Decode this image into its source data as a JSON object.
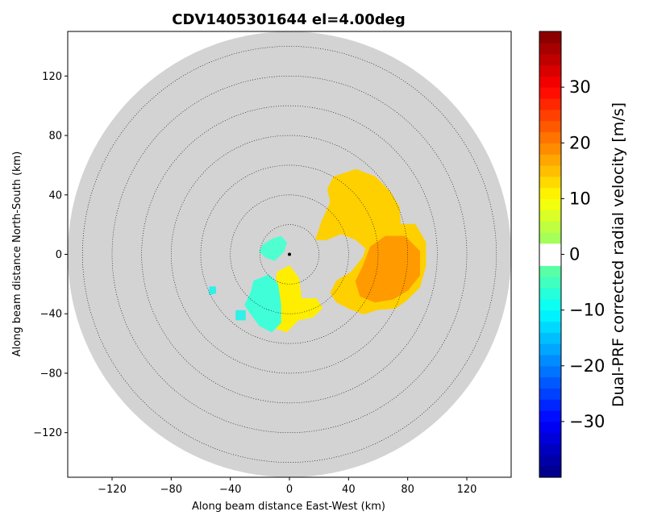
{
  "chart_data": {
    "type": "ppi_radar",
    "title": "CDV1405301644 el=4.00deg",
    "xlabel": "Along beam distance East-West (km)",
    "ylabel": "Along beam distance North-South (km)",
    "xlim": [
      -150,
      150
    ],
    "ylim": [
      -150,
      150
    ],
    "x_ticks": [
      -120,
      -80,
      -40,
      0,
      40,
      80,
      120
    ],
    "y_ticks": [
      -120,
      -80,
      -40,
      0,
      40,
      80,
      120
    ],
    "x_tick_labels": [
      "−120",
      "−80",
      "−40",
      "0",
      "40",
      "80",
      "120"
    ],
    "y_tick_labels": [
      "−120",
      "−80",
      "−40",
      "0",
      "40",
      "80",
      "120"
    ],
    "range_rings_km": [
      20,
      40,
      60,
      80,
      100,
      120,
      140
    ],
    "max_range_km": 150,
    "radar_center": [
      0,
      0
    ],
    "background_color": "#d3d3d3",
    "colorbar": {
      "label": "Dual-PRF corrected radial velocity [m/s]",
      "vmin": -40,
      "vmax": 40,
      "ticks": [
        30,
        20,
        10,
        0,
        -10,
        -20,
        -30
      ],
      "tick_labels": [
        "30",
        "20",
        "10",
        "0",
        "−10",
        "−20",
        "−30"
      ],
      "colormap": "jet_with_white_center",
      "levels": 40
    },
    "echo_regions": [
      {
        "name": "eastern-cell",
        "approx_velocity_ms": 12,
        "color": "#ffd000",
        "outline_km": [
          [
            18,
            10
          ],
          [
            22,
            22
          ],
          [
            28,
            35
          ],
          [
            26,
            44
          ],
          [
            30,
            52
          ],
          [
            45,
            57
          ],
          [
            58,
            52
          ],
          [
            68,
            42
          ],
          [
            74,
            32
          ],
          [
            75,
            20
          ],
          [
            85,
            20
          ],
          [
            92,
            8
          ],
          [
            92,
            -8
          ],
          [
            88,
            -22
          ],
          [
            80,
            -30
          ],
          [
            72,
            -36
          ],
          [
            60,
            -37
          ],
          [
            50,
            -40
          ],
          [
            40,
            -36
          ],
          [
            32,
            -32
          ],
          [
            28,
            -26
          ],
          [
            32,
            -18
          ],
          [
            42,
            -12
          ],
          [
            50,
            -2
          ],
          [
            52,
            4
          ],
          [
            45,
            10
          ],
          [
            35,
            14
          ],
          [
            25,
            10
          ]
        ]
      },
      {
        "name": "eastern-core",
        "approx_velocity_ms": 17,
        "color": "#ff9a00",
        "outline_km": [
          [
            55,
            5
          ],
          [
            65,
            12
          ],
          [
            78,
            12
          ],
          [
            88,
            2
          ],
          [
            88,
            -14
          ],
          [
            80,
            -24
          ],
          [
            70,
            -30
          ],
          [
            58,
            -32
          ],
          [
            48,
            -28
          ],
          [
            45,
            -18
          ],
          [
            50,
            -8
          ]
        ]
      },
      {
        "name": "southern-cell",
        "approx_velocity_ms": 6,
        "color": "#ffee00",
        "outline_km": [
          [
            -8,
            -12
          ],
          [
            0,
            -8
          ],
          [
            6,
            -16
          ],
          [
            8,
            -30
          ],
          [
            18,
            -30
          ],
          [
            22,
            -36
          ],
          [
            16,
            -42
          ],
          [
            6,
            -44
          ],
          [
            -2,
            -52
          ],
          [
            -8,
            -50
          ],
          [
            -12,
            -42
          ],
          [
            -10,
            -28
          ]
        ]
      },
      {
        "name": "southwest-cell",
        "approx_velocity_ms": -8,
        "color": "#40ffd8",
        "outline_km": [
          [
            -24,
            -18
          ],
          [
            -14,
            -14
          ],
          [
            -8,
            -20
          ],
          [
            -6,
            -34
          ],
          [
            -6,
            -46
          ],
          [
            -12,
            -52
          ],
          [
            -20,
            -48
          ],
          [
            -26,
            -40
          ],
          [
            -30,
            -34
          ],
          [
            -26,
            -26
          ]
        ]
      },
      {
        "name": "near-radar-echo",
        "approx_velocity_ms": -5,
        "color": "#50ffd0",
        "outline_km": [
          [
            -18,
            6
          ],
          [
            -12,
            10
          ],
          [
            -6,
            12
          ],
          [
            -2,
            8
          ],
          [
            -4,
            2
          ],
          [
            -10,
            -4
          ],
          [
            -16,
            -2
          ],
          [
            -20,
            2
          ]
        ]
      },
      {
        "name": "small-west-echo",
        "approx_velocity_ms": -9,
        "color": "#30f0e8",
        "outline_km": [
          [
            -54,
            -22
          ],
          [
            -50,
            -22
          ],
          [
            -50,
            -26
          ],
          [
            -54,
            -27
          ]
        ]
      },
      {
        "name": "small-southwest-echo",
        "approx_velocity_ms": -9,
        "color": "#30f0e8",
        "outline_km": [
          [
            -36,
            -38
          ],
          [
            -30,
            -38
          ],
          [
            -30,
            -44
          ],
          [
            -36,
            -44
          ]
        ]
      }
    ]
  }
}
